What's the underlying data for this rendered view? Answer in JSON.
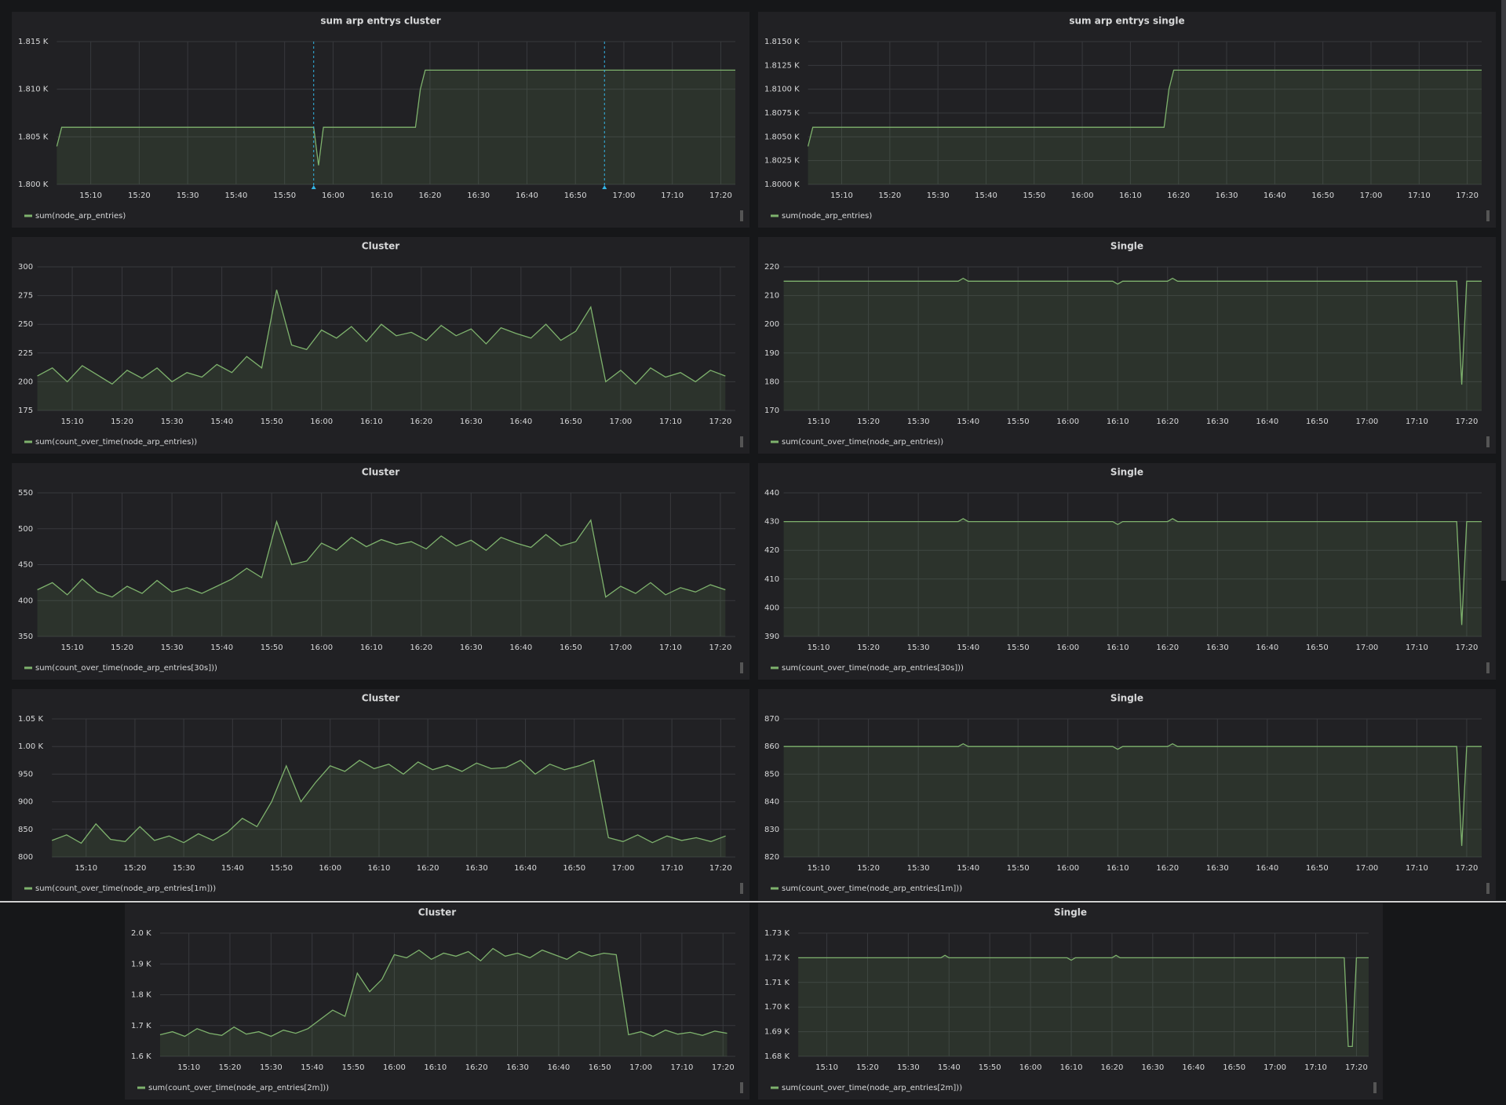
{
  "chart_data": [
    {
      "type": "line",
      "title": "sum arp entrys cluster",
      "x": [
        "15:03",
        "15:04",
        "15:56",
        "15:57",
        "15:58",
        "16:17",
        "16:18",
        "16:19",
        "17:23"
      ],
      "series": [
        {
          "name": "sum(node_arp_entries)",
          "color": "#7eb26d",
          "values": [
            1804,
            1806,
            1806,
            1802,
            1806,
            1806,
            1810,
            1812,
            1812
          ]
        }
      ],
      "annotations_x": [
        "15:56",
        "16:56"
      ],
      "xlim": [
        "15:03",
        "17:23"
      ],
      "xticks": [
        "15:10",
        "15:20",
        "15:30",
        "15:40",
        "15:50",
        "16:00",
        "16:10",
        "16:20",
        "16:30",
        "16:40",
        "16:50",
        "17:00",
        "17:10",
        "17:20"
      ],
      "ylim": [
        1800,
        1815
      ],
      "yticks": [
        {
          "value": 1800,
          "label": "1.800 K"
        },
        {
          "value": 1805,
          "label": "1.805 K"
        },
        {
          "value": 1810,
          "label": "1.810 K"
        },
        {
          "value": 1815,
          "label": "1.815 K"
        }
      ],
      "grid": true
    },
    {
      "type": "line",
      "title": "sum arp entrys single",
      "x": [
        "15:03",
        "15:04",
        "16:17",
        "16:18",
        "16:19",
        "17:23"
      ],
      "series": [
        {
          "name": "sum(node_arp_entries)",
          "color": "#7eb26d",
          "values": [
            1804,
            1806,
            1806,
            1810,
            1812,
            1812
          ]
        }
      ],
      "xlim": [
        "15:03",
        "17:23"
      ],
      "xticks": [
        "15:10",
        "15:20",
        "15:30",
        "15:40",
        "15:50",
        "16:00",
        "16:10",
        "16:20",
        "16:30",
        "16:40",
        "16:50",
        "17:00",
        "17:10",
        "17:20"
      ],
      "ylim": [
        1800,
        1815
      ],
      "yticks": [
        {
          "value": 1800,
          "label": "1.8000 K"
        },
        {
          "value": 1802.5,
          "label": "1.8025 K"
        },
        {
          "value": 1805,
          "label": "1.8050 K"
        },
        {
          "value": 1807.5,
          "label": "1.8075 K"
        },
        {
          "value": 1810,
          "label": "1.8100 K"
        },
        {
          "value": 1812.5,
          "label": "1.8125 K"
        },
        {
          "value": 1815,
          "label": "1.8150 K"
        }
      ],
      "grid": true
    },
    {
      "type": "line",
      "title": "Cluster",
      "x": [
        "15:03",
        "15:06",
        "15:09",
        "15:12",
        "15:15",
        "15:18",
        "15:21",
        "15:24",
        "15:27",
        "15:30",
        "15:33",
        "15:36",
        "15:39",
        "15:42",
        "15:45",
        "15:48",
        "15:51",
        "15:54",
        "15:57",
        "16:00",
        "16:03",
        "16:06",
        "16:09",
        "16:12",
        "16:15",
        "16:18",
        "16:21",
        "16:24",
        "16:27",
        "16:30",
        "16:33",
        "16:36",
        "16:39",
        "16:42",
        "16:45",
        "16:48",
        "16:51",
        "16:54",
        "16:57",
        "17:00",
        "17:03",
        "17:06",
        "17:09",
        "17:12",
        "17:15",
        "17:18",
        "17:21"
      ],
      "series": [
        {
          "name": "sum(count_over_time(node_arp_entries))",
          "color": "#7eb26d",
          "values": [
            205,
            212,
            200,
            214,
            206,
            198,
            210,
            203,
            212,
            200,
            208,
            204,
            215,
            208,
            222,
            212,
            280,
            232,
            228,
            245,
            238,
            248,
            235,
            250,
            240,
            243,
            236,
            249,
            240,
            246,
            233,
            247,
            242,
            238,
            250,
            236,
            244,
            265,
            200,
            210,
            198,
            212,
            204,
            208,
            200,
            210,
            205
          ]
        }
      ],
      "xlim": [
        "15:03",
        "17:23"
      ],
      "xticks": [
        "15:10",
        "15:20",
        "15:30",
        "15:40",
        "15:50",
        "16:00",
        "16:10",
        "16:20",
        "16:30",
        "16:40",
        "16:50",
        "17:00",
        "17:10",
        "17:20"
      ],
      "ylim": [
        175,
        300
      ],
      "yticks": [
        175,
        200,
        225,
        250,
        275,
        300
      ],
      "grid": true
    },
    {
      "type": "line",
      "title": "Single",
      "x": [
        "15:03",
        "15:38",
        "15:39",
        "15:40",
        "16:09",
        "16:10",
        "16:11",
        "16:20",
        "16:21",
        "16:22",
        "17:18",
        "17:19",
        "17:20",
        "17:23"
      ],
      "series": [
        {
          "name": "sum(count_over_time(node_arp_entries))",
          "color": "#7eb26d",
          "values": [
            215,
            215,
            216,
            215,
            215,
            214,
            215,
            215,
            216,
            215,
            215,
            179,
            215,
            215
          ]
        }
      ],
      "xlim": [
        "15:03",
        "17:23"
      ],
      "xticks": [
        "15:10",
        "15:20",
        "15:30",
        "15:40",
        "15:50",
        "16:00",
        "16:10",
        "16:20",
        "16:30",
        "16:40",
        "16:50",
        "17:00",
        "17:10",
        "17:20"
      ],
      "ylim": [
        170,
        220
      ],
      "yticks": [
        170,
        180,
        190,
        200,
        210,
        220
      ],
      "grid": true
    },
    {
      "type": "line",
      "title": "Cluster",
      "x": [
        "15:03",
        "15:06",
        "15:09",
        "15:12",
        "15:15",
        "15:18",
        "15:21",
        "15:24",
        "15:27",
        "15:30",
        "15:33",
        "15:36",
        "15:39",
        "15:42",
        "15:45",
        "15:48",
        "15:51",
        "15:54",
        "15:57",
        "16:00",
        "16:03",
        "16:06",
        "16:09",
        "16:12",
        "16:15",
        "16:18",
        "16:21",
        "16:24",
        "16:27",
        "16:30",
        "16:33",
        "16:36",
        "16:39",
        "16:42",
        "16:45",
        "16:48",
        "16:51",
        "16:54",
        "16:57",
        "17:00",
        "17:03",
        "17:06",
        "17:09",
        "17:12",
        "17:15",
        "17:18",
        "17:21"
      ],
      "series": [
        {
          "name": "sum(count_over_time(node_arp_entries[30s]))",
          "color": "#7eb26d",
          "values": [
            415,
            425,
            408,
            430,
            412,
            405,
            420,
            410,
            428,
            412,
            418,
            410,
            420,
            430,
            445,
            432,
            510,
            450,
            455,
            480,
            470,
            488,
            475,
            485,
            478,
            482,
            472,
            490,
            476,
            484,
            470,
            488,
            480,
            474,
            492,
            476,
            482,
            512,
            405,
            420,
            410,
            425,
            408,
            418,
            412,
            422,
            415
          ]
        }
      ],
      "xlim": [
        "15:03",
        "17:23"
      ],
      "xticks": [
        "15:10",
        "15:20",
        "15:30",
        "15:40",
        "15:50",
        "16:00",
        "16:10",
        "16:20",
        "16:30",
        "16:40",
        "16:50",
        "17:00",
        "17:10",
        "17:20"
      ],
      "ylim": [
        350,
        550
      ],
      "yticks": [
        350,
        400,
        450,
        500,
        550
      ],
      "grid": true
    },
    {
      "type": "line",
      "title": "Single",
      "x": [
        "15:03",
        "15:38",
        "15:39",
        "15:40",
        "16:09",
        "16:10",
        "16:11",
        "16:20",
        "16:21",
        "16:22",
        "17:18",
        "17:19",
        "17:20",
        "17:23"
      ],
      "series": [
        {
          "name": "sum(count_over_time(node_arp_entries[30s]))",
          "color": "#7eb26d",
          "values": [
            430,
            430,
            431,
            430,
            430,
            429,
            430,
            430,
            431,
            430,
            430,
            394,
            430,
            430
          ]
        }
      ],
      "xlim": [
        "15:03",
        "17:23"
      ],
      "xticks": [
        "15:10",
        "15:20",
        "15:30",
        "15:40",
        "15:50",
        "16:00",
        "16:10",
        "16:20",
        "16:30",
        "16:40",
        "16:50",
        "17:00",
        "17:10",
        "17:20"
      ],
      "ylim": [
        390,
        440
      ],
      "yticks": [
        390,
        400,
        410,
        420,
        430,
        440
      ],
      "grid": true
    },
    {
      "type": "line",
      "title": "Cluster",
      "x": [
        "15:03",
        "15:06",
        "15:09",
        "15:12",
        "15:15",
        "15:18",
        "15:21",
        "15:24",
        "15:27",
        "15:30",
        "15:33",
        "15:36",
        "15:39",
        "15:42",
        "15:45",
        "15:48",
        "15:51",
        "15:54",
        "15:57",
        "16:00",
        "16:03",
        "16:06",
        "16:09",
        "16:12",
        "16:15",
        "16:18",
        "16:21",
        "16:24",
        "16:27",
        "16:30",
        "16:33",
        "16:36",
        "16:39",
        "16:42",
        "16:45",
        "16:48",
        "16:51",
        "16:54",
        "16:57",
        "17:00",
        "17:03",
        "17:06",
        "17:09",
        "17:12",
        "17:15",
        "17:18",
        "17:21"
      ],
      "series": [
        {
          "name": "sum(count_over_time(node_arp_entries[1m]))",
          "color": "#7eb26d",
          "values": [
            830,
            840,
            825,
            860,
            832,
            828,
            855,
            830,
            838,
            826,
            842,
            830,
            845,
            870,
            855,
            900,
            965,
            900,
            935,
            965,
            955,
            975,
            960,
            968,
            950,
            972,
            958,
            966,
            955,
            970,
            960,
            962,
            975,
            950,
            968,
            958,
            965,
            975,
            835,
            828,
            840,
            826,
            838,
            830,
            835,
            828,
            838
          ]
        }
      ],
      "xlim": [
        "15:03",
        "17:23"
      ],
      "xticks": [
        "15:10",
        "15:20",
        "15:30",
        "15:40",
        "15:50",
        "16:00",
        "16:10",
        "16:20",
        "16:30",
        "16:40",
        "16:50",
        "17:00",
        "17:10",
        "17:20"
      ],
      "ylim": [
        800,
        1050
      ],
      "yticks": [
        800,
        850,
        900,
        950,
        {
          "value": 1000,
          "label": "1.00 K"
        },
        {
          "value": 1050,
          "label": "1.05 K"
        }
      ],
      "grid": true
    },
    {
      "type": "line",
      "title": "Single",
      "x": [
        "15:03",
        "15:38",
        "15:39",
        "15:40",
        "16:09",
        "16:10",
        "16:11",
        "16:20",
        "16:21",
        "16:22",
        "17:18",
        "17:19",
        "17:20",
        "17:23"
      ],
      "series": [
        {
          "name": "sum(count_over_time(node_arp_entries[1m]))",
          "color": "#7eb26d",
          "values": [
            860,
            860,
            861,
            860,
            860,
            859,
            860,
            860,
            861,
            860,
            860,
            824,
            860,
            860
          ]
        }
      ],
      "xlim": [
        "15:03",
        "17:23"
      ],
      "xticks": [
        "15:10",
        "15:20",
        "15:30",
        "15:40",
        "15:50",
        "16:00",
        "16:10",
        "16:20",
        "16:30",
        "16:40",
        "16:50",
        "17:00",
        "17:10",
        "17:20"
      ],
      "ylim": [
        820,
        870
      ],
      "yticks": [
        820,
        830,
        840,
        850,
        860,
        870
      ],
      "grid": true
    },
    {
      "type": "line",
      "title": "Cluster",
      "x": [
        "15:03",
        "15:06",
        "15:09",
        "15:12",
        "15:15",
        "15:18",
        "15:21",
        "15:24",
        "15:27",
        "15:30",
        "15:33",
        "15:36",
        "15:39",
        "15:42",
        "15:45",
        "15:48",
        "15:51",
        "15:54",
        "15:57",
        "16:00",
        "16:03",
        "16:06",
        "16:09",
        "16:12",
        "16:15",
        "16:18",
        "16:21",
        "16:24",
        "16:27",
        "16:30",
        "16:33",
        "16:36",
        "16:39",
        "16:42",
        "16:45",
        "16:48",
        "16:51",
        "16:54",
        "16:57",
        "17:00",
        "17:03",
        "17:06",
        "17:09",
        "17:12",
        "17:15",
        "17:18",
        "17:21"
      ],
      "series": [
        {
          "name": "sum(count_over_time(node_arp_entries[2m]))",
          "color": "#7eb26d",
          "values": [
            1670,
            1680,
            1665,
            1690,
            1675,
            1668,
            1695,
            1672,
            1680,
            1665,
            1685,
            1675,
            1690,
            1720,
            1750,
            1730,
            1870,
            1810,
            1850,
            1930,
            1920,
            1945,
            1915,
            1935,
            1925,
            1940,
            1910,
            1950,
            1925,
            1935,
            1920,
            1945,
            1930,
            1915,
            1940,
            1925,
            1935,
            1930,
            1670,
            1680,
            1665,
            1685,
            1672,
            1678,
            1668,
            1682,
            1675
          ]
        }
      ],
      "xlim": [
        "15:03",
        "17:23"
      ],
      "xticks": [
        "15:10",
        "15:20",
        "15:30",
        "15:40",
        "15:50",
        "16:00",
        "16:10",
        "16:20",
        "16:30",
        "16:40",
        "16:50",
        "17:00",
        "17:10",
        "17:20"
      ],
      "ylim": [
        1600,
        2000
      ],
      "yticks": [
        {
          "value": 1600,
          "label": "1.6 K"
        },
        {
          "value": 1700,
          "label": "1.7 K"
        },
        {
          "value": 1800,
          "label": "1.8 K"
        },
        {
          "value": 1900,
          "label": "1.9 K"
        },
        {
          "value": 2000,
          "label": "2.0 K"
        }
      ],
      "grid": true
    },
    {
      "type": "line",
      "title": "Single",
      "x": [
        "15:03",
        "15:38",
        "15:39",
        "15:40",
        "16:09",
        "16:10",
        "16:11",
        "16:20",
        "16:21",
        "16:22",
        "17:17",
        "17:18",
        "17:19",
        "17:20",
        "17:23"
      ],
      "series": [
        {
          "name": "sum(count_over_time(node_arp_entries[2m]))",
          "color": "#7eb26d",
          "values": [
            1720,
            1720,
            1721,
            1720,
            1720,
            1719,
            1720,
            1720,
            1721,
            1720,
            1720,
            1684,
            1684,
            1720,
            1720
          ]
        }
      ],
      "xlim": [
        "15:03",
        "17:23"
      ],
      "xticks": [
        "15:10",
        "15:20",
        "15:30",
        "15:40",
        "15:50",
        "16:00",
        "16:10",
        "16:20",
        "16:30",
        "16:40",
        "16:50",
        "17:00",
        "17:10",
        "17:20"
      ],
      "ylim": [
        1680,
        1730
      ],
      "yticks": [
        {
          "value": 1680,
          "label": "1.68 K"
        },
        {
          "value": 1690,
          "label": "1.69 K"
        },
        {
          "value": 1700,
          "label": "1.70 K"
        },
        {
          "value": 1710,
          "label": "1.71 K"
        },
        {
          "value": 1720,
          "label": "1.72 K"
        },
        {
          "value": 1730,
          "label": "1.73 K"
        }
      ],
      "grid": true
    }
  ]
}
